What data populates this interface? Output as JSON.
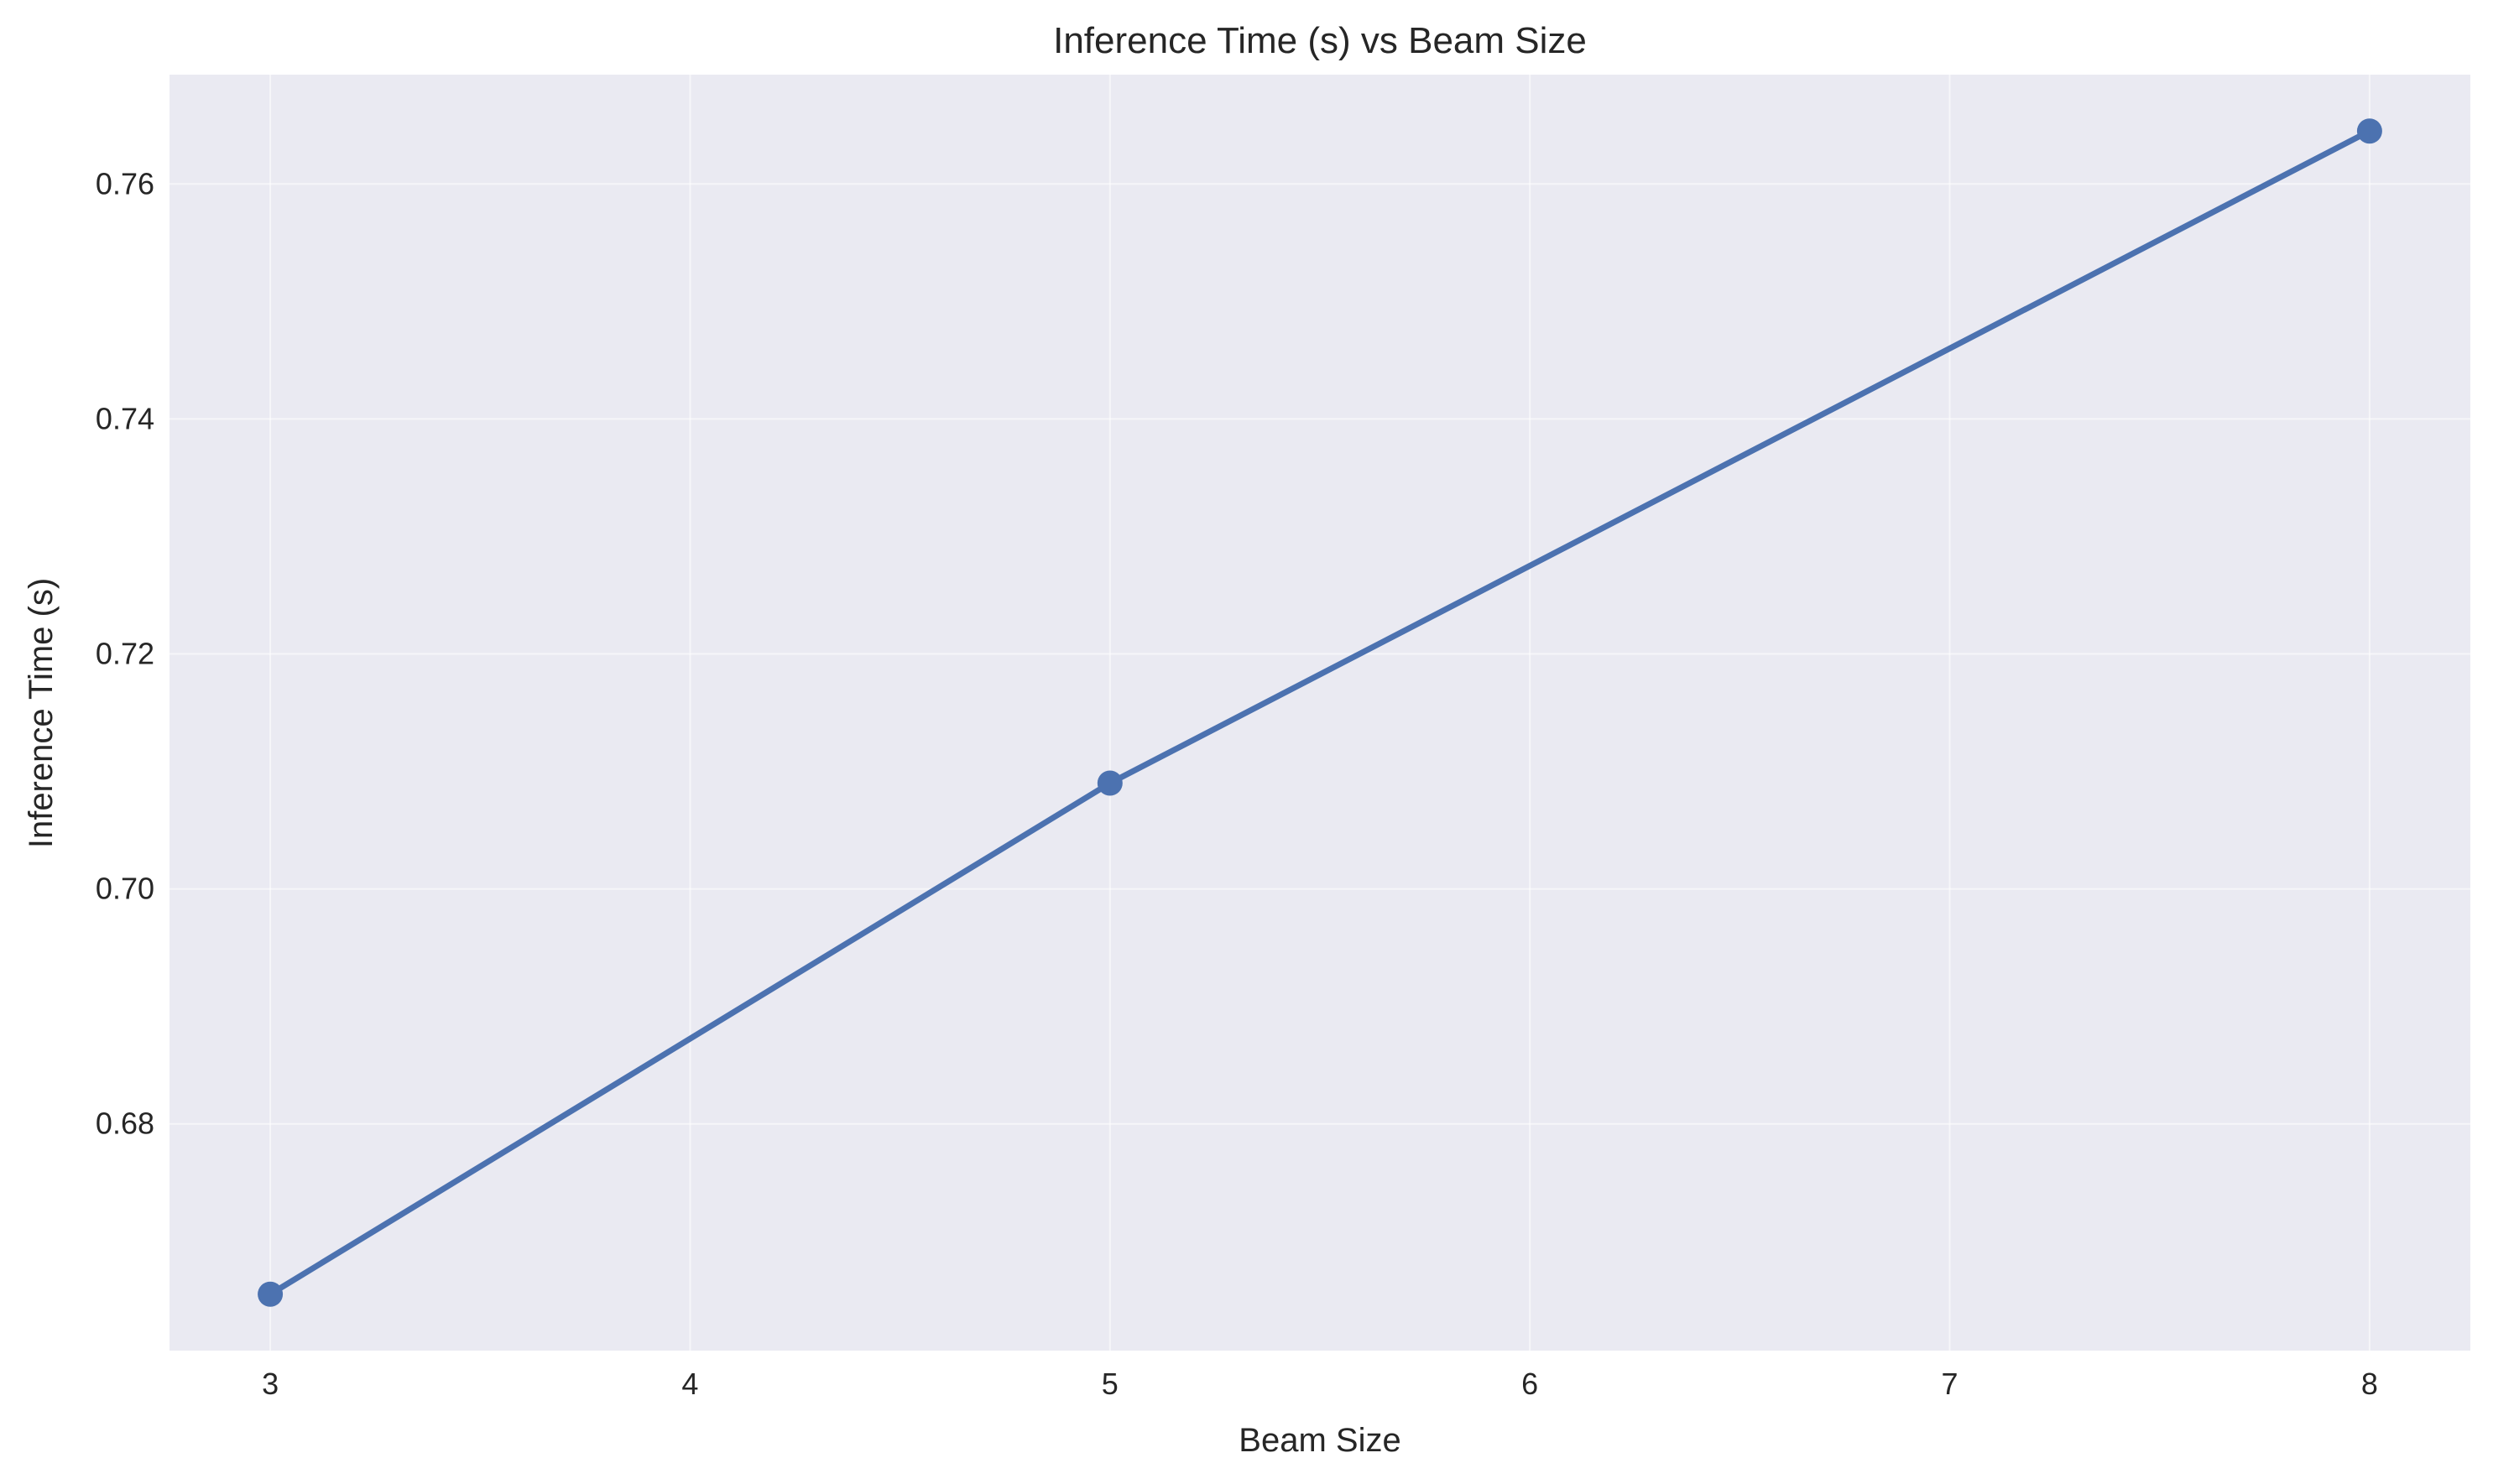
{
  "chart_data": {
    "type": "line",
    "title": "Inference Time (s) vs Beam Size",
    "xlabel": "Beam Size",
    "ylabel": "Inference Time (s)",
    "x": [
      3,
      5,
      8
    ],
    "series": [
      {
        "values": [
          0.6655,
          0.709,
          0.7645
        ]
      }
    ],
    "xlim": [
      2.76,
      8.24
    ],
    "ylim": [
      0.6607,
      0.7693
    ],
    "xticks": [
      3,
      4,
      5,
      6,
      7,
      8
    ],
    "xtick_labels": [
      "3",
      "4",
      "5",
      "6",
      "7",
      "8"
    ],
    "yticks": [
      0.68,
      0.7,
      0.72,
      0.74,
      0.76
    ],
    "ytick_labels": [
      "0.68",
      "0.70",
      "0.72",
      "0.74",
      "0.76"
    ],
    "grid": true,
    "legend": "none",
    "colors": {
      "line": "#4c72b0",
      "plot_background": "#eaeaf2",
      "grid": "#ffffff",
      "text": "#262626"
    }
  }
}
